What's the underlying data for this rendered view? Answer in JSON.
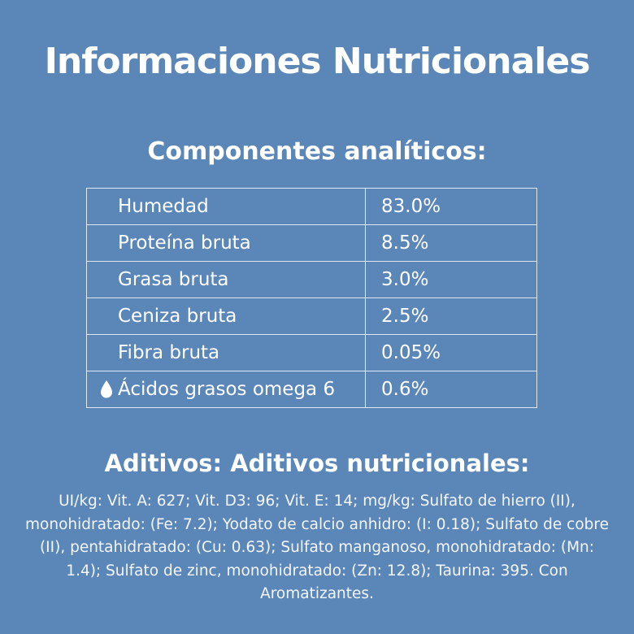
{
  "title": "Informaciones Nutricionales",
  "analytical": {
    "heading": "Componentes analíticos:",
    "rows": [
      {
        "name": "Humedad",
        "value": "83.0%"
      },
      {
        "name": "Proteína bruta",
        "value": "8.5%"
      },
      {
        "name": "Grasa bruta",
        "value": "3.0%"
      },
      {
        "name": "Ceniza bruta",
        "value": "2.5%"
      },
      {
        "name": "Fibra bruta",
        "value": "0.05%"
      },
      {
        "name": "Ácidos grasos omega 6",
        "value": "0.6%",
        "icon": "water-drop-icon"
      }
    ]
  },
  "additives": {
    "heading": "Aditivos: Aditivos nutricionales:",
    "text": "UI/kg: Vit. A: 627; Vit. D3: 96; Vit. E: 14; mg/kg: Sulfato de hierro (II), monohidratado: (Fe: 7.2); Yodato de calcio anhidro: (I: 0.18); Sulfato de cobre (II), pentahidratado: (Cu: 0.63); Sulfato manganoso, monohidratado: (Mn: 1.4); Sulfato de zinc, monohidratado: (Zn: 12.8); Taurina: 395. Con Aromatizantes."
  },
  "colors": {
    "background": "#5b86b8",
    "text": "#ffffff",
    "table_border": "#dfe9f5"
  }
}
